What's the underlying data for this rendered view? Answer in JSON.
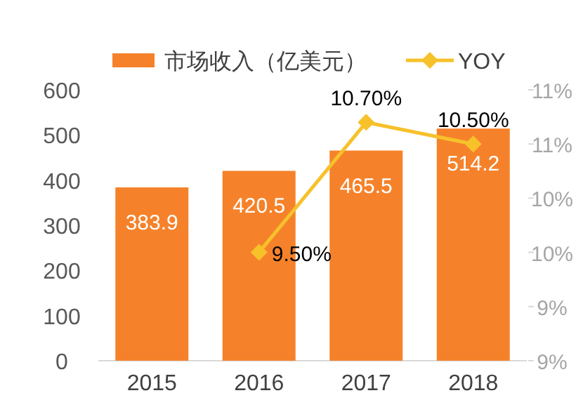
{
  "chart_data": {
    "type": "bar",
    "categories": [
      "2015",
      "2016",
      "2017",
      "2018"
    ],
    "series": [
      {
        "name": "市场收入（亿美元）",
        "type": "bar",
        "color": "#f5822a",
        "values": [
          383.9,
          420.5,
          465.5,
          514.2
        ],
        "value_labels": [
          "383.9",
          "420.5",
          "465.5",
          "514.2"
        ]
      },
      {
        "name": "YOY",
        "type": "line",
        "axis": "y2",
        "color": "#f7c12b",
        "marker": "diamond",
        "values": [
          null,
          9.5,
          10.7,
          10.5
        ],
        "value_labels": [
          null,
          "9.50%",
          "10.70%",
          "10.50%"
        ]
      }
    ],
    "ylim": [
      0,
      600
    ],
    "yticks": [
      0,
      100,
      200,
      300,
      400,
      500,
      600
    ],
    "y2lim": [
      8.5,
      11
    ],
    "y2ticks": [
      {
        "value": 8.5,
        "label": "9%"
      },
      {
        "value": 9,
        "label": "9%"
      },
      {
        "value": 9.5,
        "label": "10%"
      },
      {
        "value": 10,
        "label": "10%"
      },
      {
        "value": 10.5,
        "label": "11%"
      },
      {
        "value": 11,
        "label": "11%"
      }
    ],
    "legend": "top",
    "grid": false
  }
}
